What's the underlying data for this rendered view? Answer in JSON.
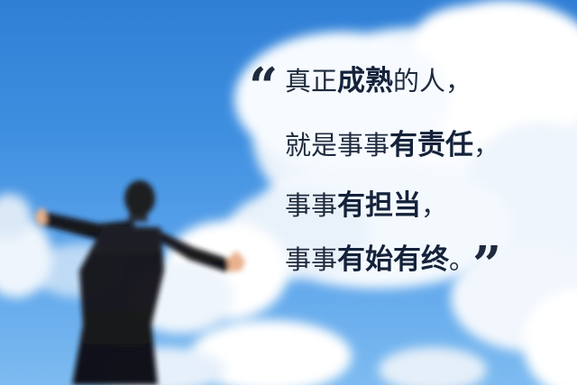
{
  "quote": {
    "open_mark": "“",
    "close_mark": "”",
    "line1": {
      "a": "真正",
      "b": "成熟",
      "c": "的人，"
    },
    "line2": {
      "a": "就是事事",
      "b": "有责任",
      "c": "，"
    },
    "line3": {
      "a": "事事",
      "b": "有担当",
      "c": "，"
    },
    "line4": {
      "a": "事事",
      "b": "有始有终",
      "c": "。"
    }
  },
  "colors": {
    "sky_top": "#2f7fd6",
    "sky_bottom": "#7dbbf0",
    "text": "#1e2a3d"
  }
}
